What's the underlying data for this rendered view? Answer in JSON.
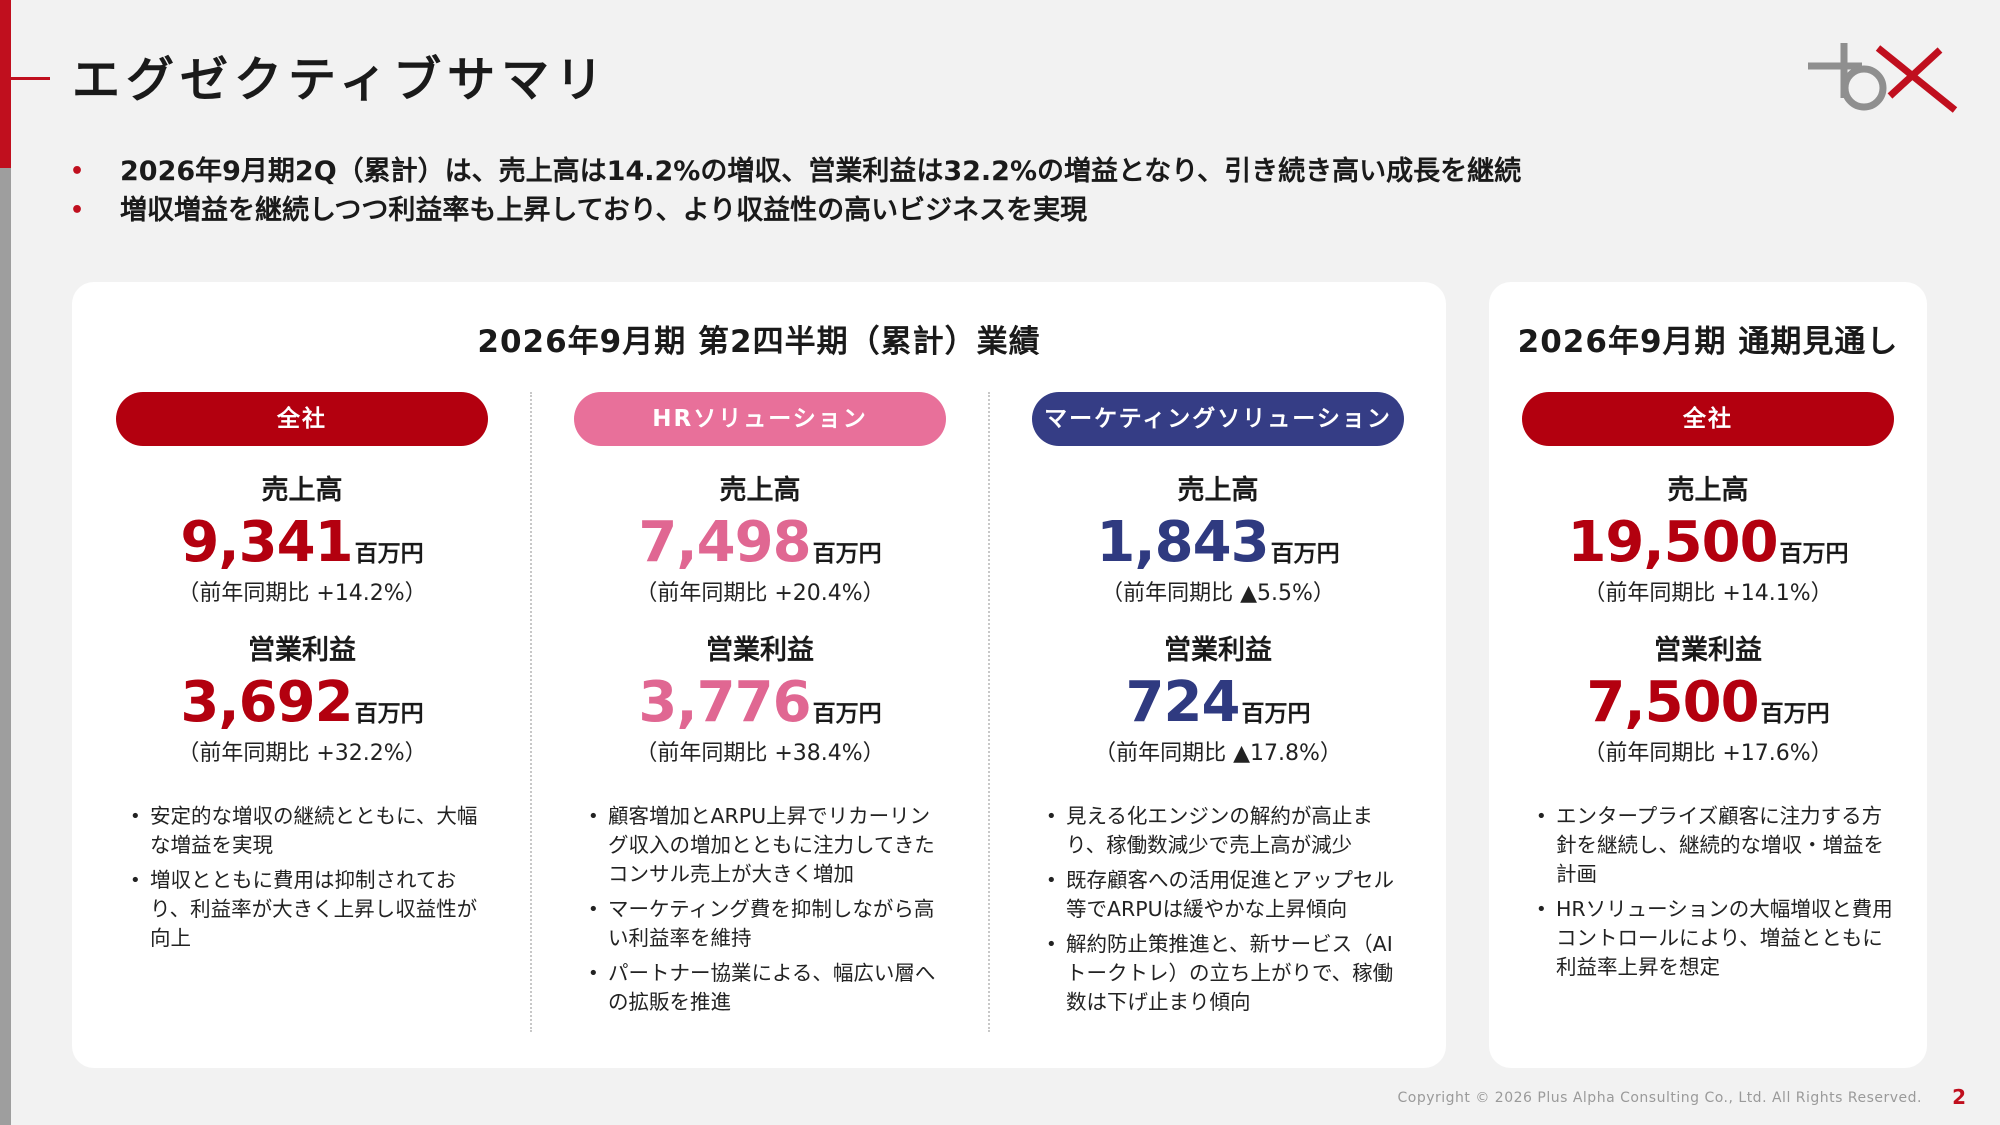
{
  "header": {
    "title": "エグゼクティブサマリ"
  },
  "summary_bullets": [
    "2026年9月期2Q（累計）は、売上高は14.2%の増収、営業利益は32.2%の増益となり、引き続き高い成長を継続",
    "増収増益を継続しつつ利益率も上昇しており、より収益性の高いビジネスを実現"
  ],
  "results_card": {
    "title": "2026年9月期 第2四半期（累計）業績",
    "columns": [
      {
        "segment": "全社",
        "sales_label": "売上高",
        "sales_value": "9,341",
        "sales_unit": "百万円",
        "sales_yoy": "（前年同期比 +14.2%）",
        "profit_label": "営業利益",
        "profit_value": "3,692",
        "profit_unit": "百万円",
        "profit_yoy": "（前年同期比 +32.2%）",
        "notes": [
          "安定的な増収の継続とともに、大幅な増益を実現",
          "増収とともに費用は抑制されており、利益率が大きく上昇し収益性が向上"
        ]
      },
      {
        "segment": "HRソリューション",
        "sales_label": "売上高",
        "sales_value": "7,498",
        "sales_unit": "百万円",
        "sales_yoy": "（前年同期比 +20.4%）",
        "profit_label": "営業利益",
        "profit_value": "3,776",
        "profit_unit": "百万円",
        "profit_yoy": "（前年同期比 +38.4%）",
        "notes": [
          "顧客増加とARPU上昇でリカーリング収入の増加とともに注力してきたコンサル売上が大きく増加",
          "マーケティング費を抑制しながら高い利益率を維持",
          "パートナー協業による、幅広い層への拡販を推進"
        ]
      },
      {
        "segment": "マーケティングソリューション",
        "sales_label": "売上高",
        "sales_value": "1,843",
        "sales_unit": "百万円",
        "sales_yoy": "（前年同期比 ▲5.5%）",
        "profit_label": "営業利益",
        "profit_value": "724",
        "profit_unit": "百万円",
        "profit_yoy": "（前年同期比 ▲17.8%）",
        "notes": [
          "見える化エンジンの解約が高止まり、稼働数減少で売上高が減少",
          "既存顧客への活用促進とアップセル等でARPUは緩やかな上昇傾向",
          "解約防止策推進と、新サービス（AIトークトレ）の立ち上がりで、稼働数は下げ止まり傾向"
        ]
      }
    ]
  },
  "forecast_card": {
    "title": "2026年9月期 通期見通し",
    "segment": "全社",
    "sales_label": "売上高",
    "sales_value": "19,500",
    "sales_unit": "百万円",
    "sales_yoy": "（前年同期比 +14.1%）",
    "profit_label": "営業利益",
    "profit_value": "7,500",
    "profit_unit": "百万円",
    "profit_yoy": "（前年同期比 +17.6%）",
    "notes": [
      "エンタープライズ顧客に注力する方針を継続し、継続的な増収・増益を計画",
      "HRソリューションの大幅増収と費用コントロールにより、増益とともに利益率上昇を想定"
    ]
  },
  "footer": {
    "copyright": "Copyright © 2026 Plus Alpha Consulting Co., Ltd. All Rights Reserved.",
    "page_number": "2"
  },
  "colors": {
    "brand_red": "#c00f1e",
    "segment_total": "#b3000f",
    "segment_hr": "#e8709a",
    "segment_marketing": "#353d85"
  }
}
